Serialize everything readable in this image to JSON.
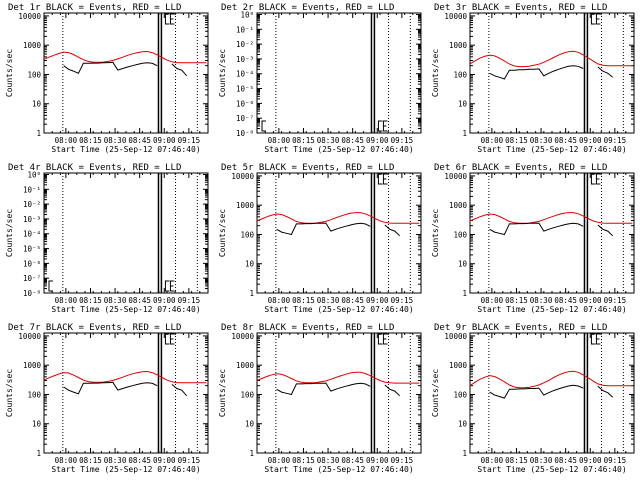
{
  "figure": {
    "xlabel": "Start Time (25-Sep-12 07:46:40)",
    "ylabel": "Counts/sec",
    "colors": {
      "events": "#000000",
      "lld": "#e00000",
      "axes": "#000000",
      "background": "#ffffff"
    },
    "x_ticks": [
      "08:00",
      "08:15",
      "08:30",
      "08:45",
      "09:00",
      "09:15"
    ],
    "x_tick_minutes": [
      13.33,
      28.33,
      43.33,
      58.33,
      73.33,
      88.33
    ],
    "x_range_minutes": [
      0,
      100
    ],
    "dotted_minutes": [
      11.5,
      80.2,
      93.5
    ],
    "solid_minutes": [
      69.8,
      71.6
    ]
  },
  "chart_data": [
    {
      "type": "line",
      "title": "Det 1r BLACK = Events, RED = LLD",
      "scale": "log",
      "yticks": [
        "1",
        "10",
        "100",
        "1000",
        "10000"
      ],
      "yticks_exp": [
        0,
        1,
        2,
        3,
        4
      ],
      "ylim_exp": [
        0,
        4.1
      ],
      "x": [
        0,
        3,
        6,
        9,
        12,
        15,
        18,
        21,
        24,
        27,
        30,
        33,
        36,
        39,
        42,
        45,
        48,
        51,
        54,
        57,
        60,
        63,
        66,
        69,
        72,
        75,
        78,
        81,
        84,
        87,
        90,
        93,
        96,
        99
      ],
      "series": [
        {
          "role": "lld",
          "values": [
            330,
            390,
            450,
            520,
            580,
            560,
            480,
            390,
            320,
            280,
            260,
            260,
            265,
            280,
            300,
            340,
            390,
            450,
            510,
            560,
            600,
            610,
            560,
            470,
            380,
            310,
            270,
            255,
            250,
            250,
            250,
            250,
            250,
            250
          ]
        },
        {
          "role": "events",
          "values": [
            null,
            null,
            null,
            null,
            200,
            150,
            130,
            110,
            240,
            240,
            245,
            245,
            250,
            255,
            260,
            140,
            160,
            180,
            200,
            220,
            240,
            250,
            240,
            200,
            null,
            null,
            230,
            160,
            140,
            90,
            null,
            null,
            null,
            null
          ]
        }
      ]
    },
    {
      "type": "line",
      "title": "Det 2r BLACK = Events, RED = LLD",
      "scale": "log",
      "yticks": [
        "10⁻⁸",
        "10⁻⁷",
        "10⁻⁶",
        "10⁻⁵",
        "10⁻⁴",
        "10⁻³",
        "10⁻²",
        "10⁻¹",
        "10⁰"
      ],
      "yticks_exp": [
        0,
        1,
        2,
        3,
        4,
        5,
        6,
        7,
        8
      ],
      "ylim_exp": [
        0,
        8.1
      ],
      "x": [],
      "series": []
    },
    {
      "type": "line",
      "title": "Det 3r BLACK = Events, RED = LLD",
      "scale": "log",
      "yticks": [
        "1",
        "10",
        "100",
        "1000",
        "10000"
      ],
      "yticks_exp": [
        0,
        1,
        2,
        3,
        4
      ],
      "ylim_exp": [
        0,
        4.1
      ],
      "x": [
        0,
        3,
        6,
        9,
        12,
        15,
        18,
        21,
        24,
        27,
        30,
        33,
        36,
        39,
        42,
        45,
        48,
        51,
        54,
        57,
        60,
        63,
        66,
        69,
        72,
        75,
        78,
        81,
        84,
        87,
        90,
        93,
        96,
        99
      ],
      "series": [
        {
          "role": "lld",
          "values": [
            230,
            290,
            360,
            420,
            460,
            430,
            360,
            290,
            230,
            195,
            185,
            185,
            190,
            205,
            225,
            260,
            310,
            380,
            460,
            540,
            600,
            620,
            570,
            470,
            370,
            290,
            230,
            205,
            200,
            200,
            200,
            200,
            200,
            200
          ]
        },
        {
          "role": "events",
          "values": [
            null,
            null,
            null,
            null,
            110,
            90,
            80,
            70,
            140,
            140,
            145,
            145,
            150,
            150,
            155,
            90,
            110,
            130,
            150,
            170,
            190,
            200,
            190,
            160,
            null,
            null,
            180,
            130,
            110,
            80,
            null,
            null,
            null,
            null
          ]
        }
      ]
    },
    {
      "type": "line",
      "title": "Det 4r BLACK = Events, RED = LLD",
      "scale": "log",
      "yticks": [
        "10⁻⁸",
        "10⁻⁷",
        "10⁻⁶",
        "10⁻⁵",
        "10⁻⁴",
        "10⁻³",
        "10⁻²",
        "10⁻¹",
        "10⁰"
      ],
      "yticks_exp": [
        0,
        1,
        2,
        3,
        4,
        5,
        6,
        7,
        8
      ],
      "ylim_exp": [
        0,
        8.1
      ],
      "x": [],
      "series": []
    },
    {
      "type": "line",
      "title": "Det 5r BLACK = Events, RED = LLD",
      "scale": "log",
      "yticks": [
        "1",
        "10",
        "100",
        "1000",
        "10000"
      ],
      "yticks_exp": [
        0,
        1,
        2,
        3,
        4
      ],
      "ylim_exp": [
        0,
        4.1
      ],
      "x": [
        0,
        3,
        6,
        9,
        12,
        15,
        18,
        21,
        24,
        27,
        30,
        33,
        36,
        39,
        42,
        45,
        48,
        51,
        54,
        57,
        60,
        63,
        66,
        69,
        72,
        75,
        78,
        81,
        84,
        87,
        90,
        93,
        96,
        99
      ],
      "series": [
        {
          "role": "lld",
          "values": [
            290,
            340,
            400,
            460,
            500,
            480,
            410,
            340,
            280,
            250,
            240,
            240,
            245,
            260,
            280,
            320,
            370,
            420,
            480,
            530,
            560,
            560,
            510,
            430,
            350,
            290,
            260,
            245,
            240,
            240,
            240,
            240,
            240,
            240
          ]
        },
        {
          "role": "events",
          "values": [
            null,
            null,
            null,
            null,
            150,
            120,
            110,
            100,
            230,
            230,
            235,
            235,
            240,
            240,
            245,
            130,
            150,
            170,
            190,
            210,
            230,
            240,
            230,
            190,
            null,
            null,
            210,
            150,
            130,
            90,
            null,
            null,
            null,
            null
          ]
        }
      ]
    },
    {
      "type": "line",
      "title": "Det 6r BLACK = Events, RED = LLD",
      "scale": "log",
      "yticks": [
        "1",
        "10",
        "100",
        "1000",
        "10000"
      ],
      "yticks_exp": [
        0,
        1,
        2,
        3,
        4
      ],
      "ylim_exp": [
        0,
        4.1
      ],
      "x": [
        0,
        3,
        6,
        9,
        12,
        15,
        18,
        21,
        24,
        27,
        30,
        33,
        36,
        39,
        42,
        45,
        48,
        51,
        54,
        57,
        60,
        63,
        66,
        69,
        72,
        75,
        78,
        81,
        84,
        87,
        90,
        93,
        96,
        99
      ],
      "series": [
        {
          "role": "lld",
          "values": [
            290,
            340,
            400,
            460,
            500,
            480,
            410,
            340,
            280,
            250,
            240,
            240,
            245,
            260,
            280,
            320,
            370,
            420,
            480,
            530,
            560,
            560,
            510,
            430,
            350,
            290,
            260,
            245,
            240,
            240,
            240,
            240,
            240,
            240
          ]
        },
        {
          "role": "events",
          "values": [
            null,
            null,
            null,
            null,
            150,
            120,
            110,
            100,
            230,
            230,
            235,
            235,
            240,
            240,
            245,
            130,
            150,
            170,
            190,
            210,
            230,
            240,
            230,
            190,
            null,
            null,
            210,
            150,
            130,
            90,
            null,
            null,
            null,
            null
          ]
        }
      ]
    },
    {
      "type": "line",
      "title": "Det 7r BLACK = Events, RED = LLD",
      "scale": "log",
      "yticks": [
        "1",
        "10",
        "100",
        "1000",
        "10000"
      ],
      "yticks_exp": [
        0,
        1,
        2,
        3,
        4
      ],
      "ylim_exp": [
        0,
        4.1
      ],
      "x": [
        0,
        3,
        6,
        9,
        12,
        15,
        18,
        21,
        24,
        27,
        30,
        33,
        36,
        39,
        42,
        45,
        48,
        51,
        54,
        57,
        60,
        63,
        66,
        69,
        72,
        75,
        78,
        81,
        84,
        87,
        90,
        93,
        96,
        99
      ],
      "series": [
        {
          "role": "lld",
          "values": [
            310,
            370,
            430,
            500,
            560,
            540,
            460,
            380,
            310,
            275,
            260,
            260,
            265,
            280,
            300,
            340,
            390,
            450,
            510,
            560,
            600,
            610,
            560,
            470,
            380,
            310,
            270,
            255,
            250,
            250,
            250,
            250,
            250,
            250
          ]
        },
        {
          "role": "events",
          "values": [
            null,
            null,
            null,
            null,
            180,
            140,
            120,
            105,
            240,
            240,
            245,
            245,
            250,
            255,
            260,
            140,
            160,
            180,
            200,
            220,
            240,
            250,
            240,
            200,
            null,
            null,
            220,
            160,
            140,
            90,
            null,
            null,
            null,
            null
          ]
        }
      ]
    },
    {
      "type": "line",
      "title": "Det 8r BLACK = Events, RED = LLD",
      "scale": "log",
      "yticks": [
        "1",
        "10",
        "100",
        "1000",
        "10000"
      ],
      "yticks_exp": [
        0,
        1,
        2,
        3,
        4
      ],
      "ylim_exp": [
        0,
        4.1
      ],
      "x": [
        0,
        3,
        6,
        9,
        12,
        15,
        18,
        21,
        24,
        27,
        30,
        33,
        36,
        39,
        42,
        45,
        48,
        51,
        54,
        57,
        60,
        63,
        66,
        69,
        72,
        75,
        78,
        81,
        84,
        87,
        90,
        93,
        96,
        99
      ],
      "series": [
        {
          "role": "lld",
          "values": [
            300,
            350,
            410,
            470,
            510,
            490,
            420,
            350,
            290,
            260,
            250,
            250,
            255,
            270,
            290,
            330,
            380,
            430,
            490,
            540,
            570,
            570,
            520,
            440,
            360,
            300,
            265,
            250,
            245,
            245,
            245,
            245,
            245,
            245
          ]
        },
        {
          "role": "events",
          "values": [
            null,
            null,
            null,
            null,
            150,
            120,
            110,
            100,
            230,
            230,
            235,
            235,
            240,
            240,
            245,
            130,
            150,
            170,
            190,
            210,
            230,
            240,
            230,
            190,
            null,
            null,
            210,
            150,
            130,
            90,
            null,
            null,
            null,
            null
          ]
        }
      ]
    },
    {
      "type": "line",
      "title": "Det 9r BLACK = Events, RED = LLD",
      "scale": "log",
      "yticks": [
        "1",
        "10",
        "100",
        "1000",
        "10000"
      ],
      "yticks_exp": [
        0,
        1,
        2,
        3,
        4
      ],
      "ylim_exp": [
        0,
        4.1
      ],
      "x": [
        0,
        3,
        6,
        9,
        12,
        15,
        18,
        21,
        24,
        27,
        30,
        33,
        36,
        39,
        42,
        45,
        48,
        51,
        54,
        57,
        60,
        63,
        66,
        69,
        72,
        75,
        78,
        81,
        84,
        87,
        90,
        93,
        96,
        99
      ],
      "series": [
        {
          "role": "lld",
          "values": [
            200,
            260,
            330,
            390,
            440,
            410,
            340,
            270,
            210,
            180,
            170,
            170,
            175,
            190,
            210,
            250,
            300,
            380,
            460,
            540,
            600,
            620,
            570,
            470,
            370,
            290,
            230,
            205,
            200,
            200,
            200,
            200,
            200,
            200
          ]
        },
        {
          "role": "events",
          "values": [
            null,
            null,
            null,
            null,
            120,
            95,
            85,
            75,
            150,
            150,
            155,
            155,
            160,
            160,
            165,
            95,
            115,
            135,
            155,
            175,
            195,
            205,
            195,
            165,
            null,
            null,
            190,
            135,
            115,
            80,
            null,
            null,
            null,
            null
          ]
        }
      ]
    }
  ]
}
